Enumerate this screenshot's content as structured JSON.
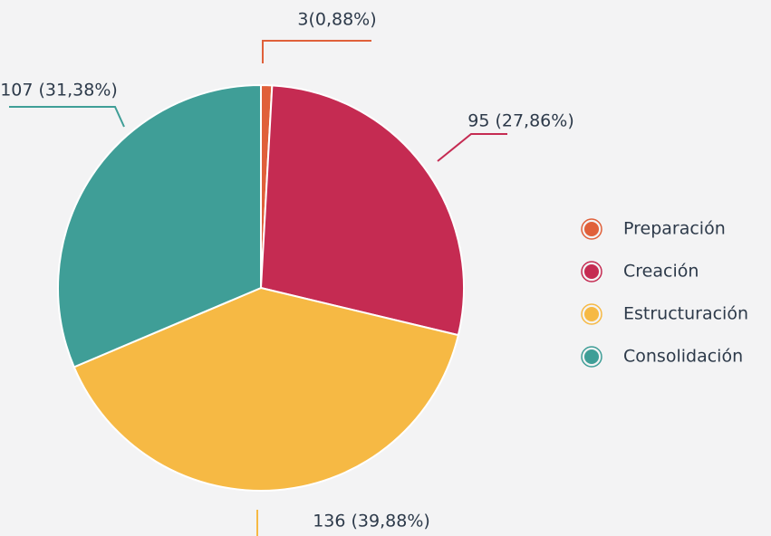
{
  "chart_data": {
    "type": "pie",
    "categories": [
      "Preparación",
      "Creación",
      "Estructuración",
      "Consolidación"
    ],
    "values": [
      3,
      95,
      136,
      107
    ],
    "value_labels": [
      "3(0,88%)",
      "95 (27,86%)",
      "136 (39,88%)",
      "107 (31,38%)"
    ],
    "colors": [
      "#e0603a",
      "#c52b52",
      "#f6b944",
      "#3f9e97"
    ],
    "legend": "right"
  }
}
